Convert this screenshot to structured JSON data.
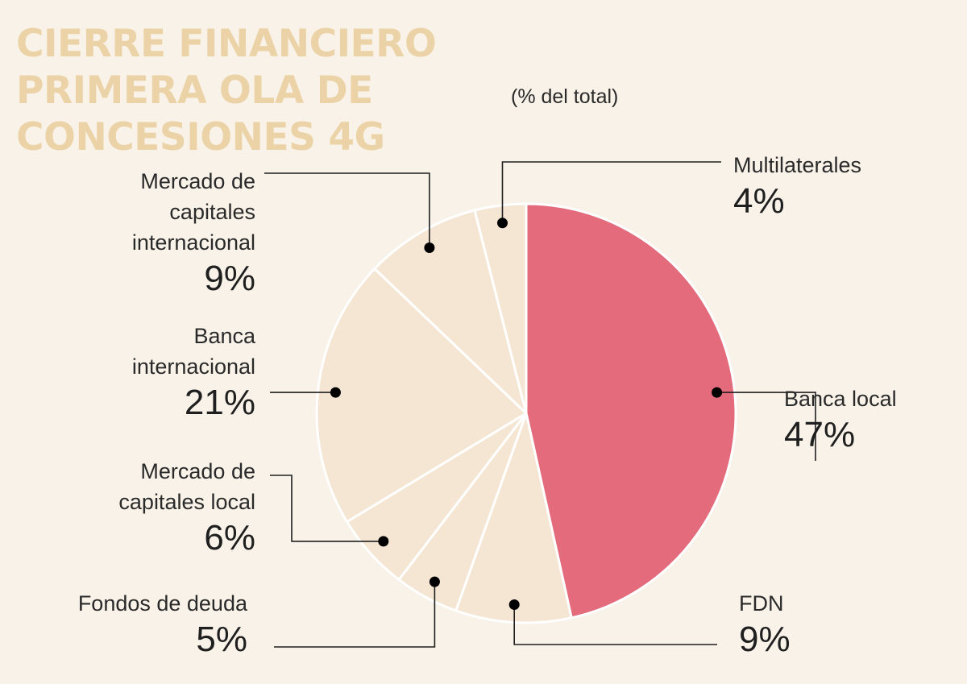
{
  "title_lines": [
    "CIERRE FINANCIERO",
    "PRIMERA OLA DE",
    "CONCESIONES 4G"
  ],
  "subtitle": "(% del total)",
  "colors": {
    "highlight": "#e46b7c",
    "slice": "#f5e6d3",
    "background": "#f8f2e8",
    "title": "#ecd3a7",
    "leader": "#1f1f1f"
  },
  "chart_data": {
    "type": "pie",
    "title": "CIERRE FINANCIERO PRIMERA OLA DE CONCESIONES 4G",
    "subtitle": "(% del total)",
    "start": "12 o'clock, clockwise",
    "slices": [
      {
        "label": "Banca local",
        "value": 47,
        "display": "47%",
        "highlight": true
      },
      {
        "label": "FDN",
        "value": 9,
        "display": "9%",
        "highlight": false
      },
      {
        "label": "Fondos de deuda",
        "value": 5,
        "display": "5%",
        "highlight": false
      },
      {
        "label": "Mercado de capitales local",
        "value": 6,
        "display": "6%",
        "highlight": false
      },
      {
        "label": "Banca internacional",
        "value": 21,
        "display": "21%",
        "highlight": false
      },
      {
        "label": "Mercado de capitales internacional",
        "value": 9,
        "display": "9%",
        "highlight": false
      },
      {
        "label": "Multilaterales",
        "value": 4,
        "display": "4%",
        "highlight": false
      }
    ]
  },
  "labels": {
    "banca_local": {
      "lines": [
        "Banca local"
      ],
      "pct": "47%"
    },
    "fdn": {
      "lines": [
        "FDN"
      ],
      "pct": "9%"
    },
    "fondos": {
      "lines": [
        "Fondos de deuda"
      ],
      "pct": "5%"
    },
    "mk_local": {
      "lines": [
        "Mercado de",
        "capitales local"
      ],
      "pct": "6%"
    },
    "banca_int": {
      "lines": [
        "Banca",
        "internacional"
      ],
      "pct": "21%"
    },
    "mk_int": {
      "lines": [
        "Mercado de",
        "capitales",
        "internacional"
      ],
      "pct": "9%"
    },
    "multi": {
      "lines": [
        "Multilaterales"
      ],
      "pct": "4%"
    }
  }
}
